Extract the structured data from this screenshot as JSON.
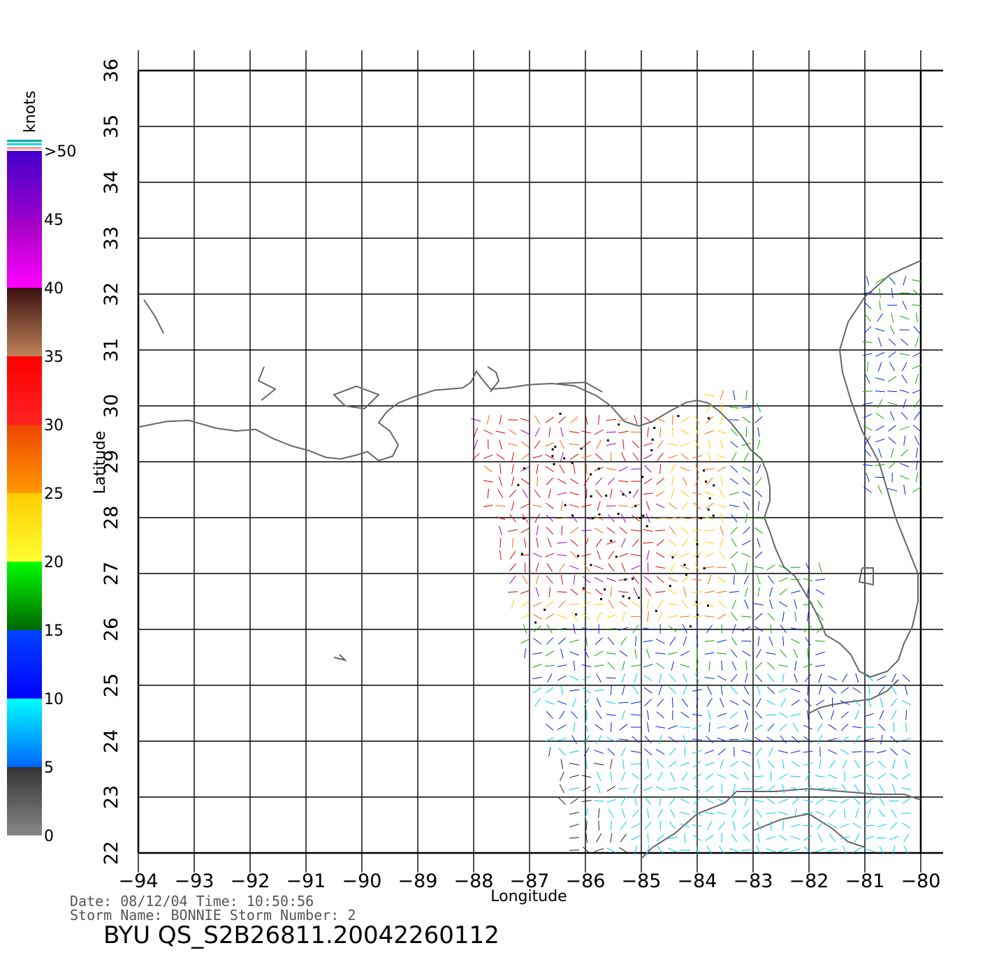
{
  "map": {
    "lon_min": -94,
    "lon_max": -80,
    "lat_min": 22,
    "lat_max": 36,
    "lon_ticks": [
      "−94",
      "−93",
      "−92",
      "−91",
      "−90",
      "−89",
      "−88",
      "−87",
      "−86",
      "−85",
      "−84",
      "−83",
      "−82",
      "−81",
      "−80"
    ],
    "lat_ticks": [
      "22",
      "23",
      "24",
      "25",
      "26",
      "27",
      "28",
      "29",
      "30",
      "31",
      "32",
      "33",
      "34",
      "35",
      "36"
    ],
    "x_label": "Longitude",
    "y_label": "Latitude",
    "coastline_color": "#666666",
    "grid_color": "#000000"
  },
  "colorbar": {
    "unit": "knots",
    "labels": [
      "0",
      "5",
      "10",
      "15",
      "20",
      "25",
      "30",
      "35",
      "40",
      "45",
      ">50"
    ],
    "bands": [
      {
        "from": 0,
        "to": 5,
        "top": "#333333",
        "bottom": "#888888"
      },
      {
        "from": 5,
        "to": 10,
        "top": "#00ffff",
        "bottom": "#0066ff"
      },
      {
        "from": 10,
        "to": 15,
        "top": "#0044ff",
        "bottom": "#0000ff"
      },
      {
        "from": 15,
        "to": 20,
        "top": "#00ff00",
        "bottom": "#006600"
      },
      {
        "from": 20,
        "to": 25,
        "top": "#ffcc00",
        "bottom": "#ffff33"
      },
      {
        "from": 25,
        "to": 30,
        "top": "#ee4400",
        "bottom": "#ff9900"
      },
      {
        "from": 30,
        "to": 35,
        "top": "#ff0000",
        "bottom": "#ff2222"
      },
      {
        "from": 35,
        "to": 40,
        "top": "#3a1010",
        "bottom": "#c0835a"
      },
      {
        "from": 40,
        "to": 45,
        "top": "#a000c0",
        "bottom": "#ff00ff"
      },
      {
        "from": 45,
        "to": 50,
        "top": "#4400cc",
        "bottom": "#9900cc"
      }
    ]
  },
  "info": {
    "line1": "Date: 08/12/04   Time: 10:50:56",
    "line2": "Storm Name: BONNIE   Storm Number: 2",
    "title": "BYU QS_S2B26811.20042260112"
  },
  "wind_colors": {
    "calm": "#222222",
    "light": "#00ccee",
    "moderate": "#0022dd",
    "fresh": "#00aa00",
    "strong": "#ffcc00",
    "gale": "#ff6600",
    "storm": "#dd0000",
    "violent": "#9900cc"
  }
}
